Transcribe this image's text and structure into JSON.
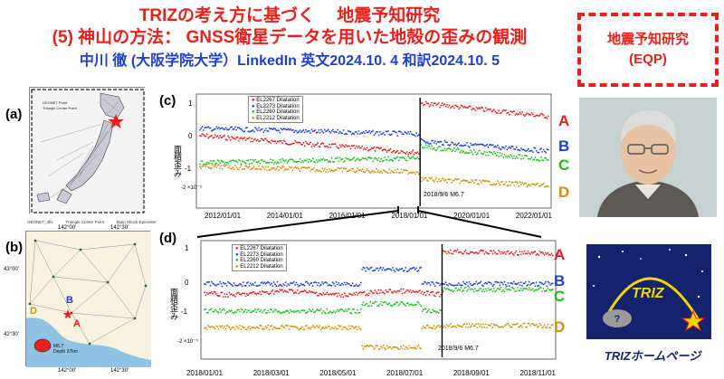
{
  "header": {
    "line1": "TRIZの考え方に基づく　 地震予知研究",
    "line2": "(5) 神山の方法：  GNSS衛星データを用いた地殻の歪みの観測",
    "line3": "中川 徹 (大阪学院大学）LinkedIn 英文2024.10. 4  和訳2024.10. 5"
  },
  "badge": {
    "line1": "地震予知研究",
    "line2": "(EQP)"
  },
  "panels": {
    "a": "(a)",
    "b": "(b)",
    "c": "(c)",
    "d": "(d)"
  },
  "map_a": {
    "legend": [
      "GEONET Point",
      "Triangle Center Point"
    ]
  },
  "map_b": {
    "legend": [
      "GEONET_4fix",
      "Triangle Center Point",
      "Main Shock Epicenter"
    ],
    "top_ticks": [
      "142°00'",
      "142°30'"
    ],
    "bottom_ticks": [
      "142°00'",
      "142°30'"
    ],
    "left_ticks": [
      "43°00'",
      "42°30'"
    ],
    "labels": {
      "B": "B",
      "A": "A",
      "D": "D"
    },
    "quake": {
      "mag": "M6.7",
      "kind": "Depth 37km"
    }
  },
  "chart_c": {
    "legend": [
      "EL2267 Dilatation",
      "EL2273 Dilatation",
      "EL2260 Dilatation",
      "EL2212 Dilatation"
    ],
    "ylabel": "面積歪み",
    "y_ticks": [
      "1",
      "0",
      "-1",
      "-2 ×10⁻⁵"
    ],
    "x_ticks": [
      "2012/01/01",
      "2014/01/01",
      "2016/01/01",
      "2018/01/01",
      "2020/01/01",
      "2022/01/01"
    ],
    "annotation": "2018/9/6 M6.7",
    "series_letters": [
      "A",
      "B",
      "C",
      "D"
    ],
    "colors": {
      "A": "#ee1c1c",
      "B": "#1c3ee0",
      "C": "#1fbf1f",
      "D": "#d18f0a"
    }
  },
  "chart_d": {
    "legend": [
      "EL2267 Dilatation",
      "EL2273 Dilatation",
      "EL2260 Dilatation",
      "EL2212 Dilatation"
    ],
    "ylabel": "面積歪み",
    "y_ticks": [
      "1",
      "0",
      "-1",
      "-2 ×10⁻⁵"
    ],
    "x_ticks": [
      "2018/01/01",
      "2018/03/01",
      "2018/05/01",
      "2018/07/01",
      "2018/09/01",
      "2018/11/01"
    ],
    "annotation": "2018/9/6 M6.7",
    "series_letters": [
      "A",
      "B",
      "C",
      "D"
    ]
  },
  "triz": {
    "logo_text": "TRIZ",
    "caption": "TRIZホームページ"
  }
}
